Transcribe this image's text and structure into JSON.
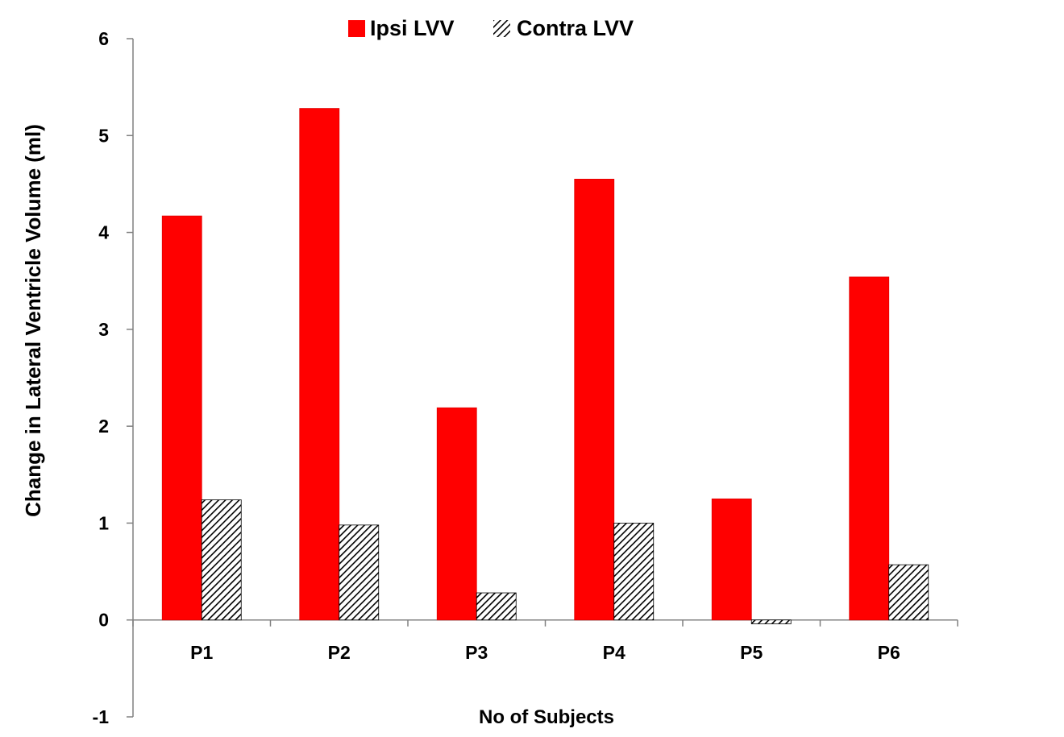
{
  "chart_data": {
    "type": "bar",
    "title": "",
    "xlabel": "No of Subjects",
    "ylabel": "Change in Lateral Ventricle Volume (ml)",
    "categories": [
      "P1",
      "P2",
      "P3",
      "P4",
      "P5",
      "P6"
    ],
    "ylim": [
      -1,
      6
    ],
    "yticks": [
      "-1",
      "0",
      "1",
      "2",
      "3",
      "4",
      "5",
      "6"
    ],
    "grid": false,
    "legend_position": "top",
    "series": [
      {
        "name": "Ipsi LVV",
        "values": [
          4.17,
          5.28,
          2.19,
          4.55,
          1.25,
          3.54
        ],
        "color": "#ff0000",
        "pattern": "solid"
      },
      {
        "name": "Contra LVV",
        "values": [
          1.24,
          0.98,
          0.28,
          1.0,
          -0.04,
          0.57
        ],
        "color": "#000000",
        "pattern": "diagonal-hatch"
      }
    ]
  }
}
